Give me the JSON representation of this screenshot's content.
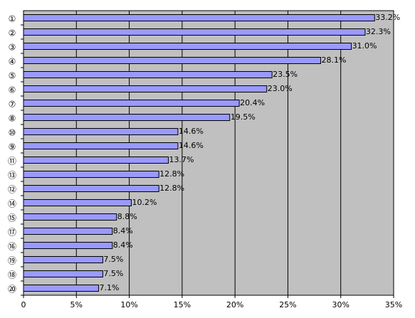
{
  "chart_data": {
    "type": "bar",
    "orientation": "horizontal",
    "title": "",
    "xlabel": "",
    "ylabel": "",
    "xlim": [
      0,
      35
    ],
    "x_ticks": [
      0,
      5,
      10,
      15,
      20,
      25,
      30,
      35
    ],
    "x_tick_labels": [
      "0",
      "5%",
      "10%",
      "15%",
      "20%",
      "25%",
      "30%",
      "35%"
    ],
    "grid": "vertical",
    "legend": "none",
    "colors": {
      "plot_background": "#c0c0c0",
      "bar_fill": "#9999ff",
      "bar_stroke": "#000000",
      "gridline": "#000000"
    },
    "categories": [
      "①",
      "②",
      "③",
      "④",
      "⑤",
      "⑥",
      "⑦",
      "⑧",
      "⑩",
      "⑨",
      "⑪",
      "⑬",
      "⑫",
      "⑭",
      "⑮",
      "⑰",
      "⑯",
      "⑲",
      "⑱",
      "⑳"
    ],
    "values": [
      33.2,
      32.3,
      31.0,
      28.1,
      23.5,
      23.0,
      20.4,
      19.5,
      14.6,
      14.6,
      13.7,
      12.8,
      12.8,
      10.2,
      8.8,
      8.4,
      8.4,
      7.5,
      7.5,
      7.1
    ],
    "data_labels": [
      "33.2%",
      "32.3%",
      "31.0%",
      "28.1%",
      "23.5%",
      "23.0%",
      "20.4%",
      "19.5%",
      "14.6%",
      "14.6%",
      "13.7%",
      "12.8%",
      "12.8%",
      "10.2%",
      "8.8%",
      "8.4%",
      "8.4%",
      "7.5%",
      "7.5%",
      "7.1%"
    ]
  }
}
